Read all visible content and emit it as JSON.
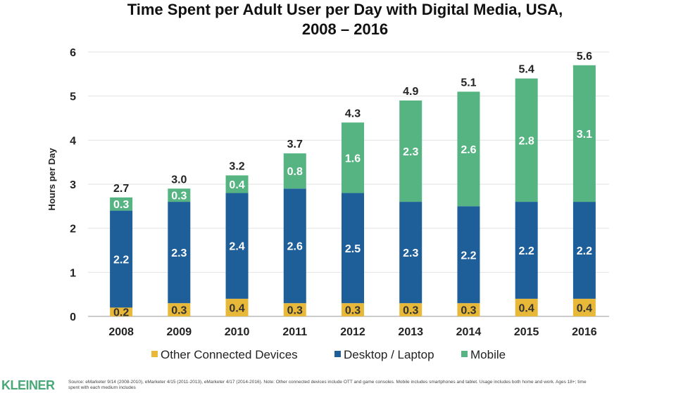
{
  "chart_data": {
    "type": "bar",
    "stacked": true,
    "title": "Time Spent per Adult User per Day with Digital Media, USA,",
    "title_line2": "2008 – 2016",
    "xlabel": "",
    "ylabel": "Hours per Day",
    "ylim": [
      0,
      6
    ],
    "yticks": [
      "0",
      "1",
      "2",
      "3",
      "4",
      "5",
      "6"
    ],
    "grid": true,
    "legend_position": "bottom",
    "categories": [
      "2008",
      "2009",
      "2010",
      "2011",
      "2012",
      "2013",
      "2014",
      "2015",
      "2016"
    ],
    "series": [
      {
        "name": "Other Connected Devices",
        "color": "#e8b838",
        "label_color": "#333333",
        "values": [
          0.2,
          0.3,
          0.4,
          0.3,
          0.3,
          0.3,
          0.3,
          0.4,
          0.4
        ]
      },
      {
        "name": "Desktop / Laptop",
        "color": "#1f5f99",
        "label_color": "#ffffff",
        "values": [
          2.2,
          2.3,
          2.4,
          2.6,
          2.5,
          2.3,
          2.2,
          2.2,
          2.2
        ]
      },
      {
        "name": "Mobile",
        "color": "#56b483",
        "label_color": "#ffffff",
        "values": [
          0.3,
          0.3,
          0.4,
          0.8,
          1.6,
          2.3,
          2.6,
          2.8,
          3.1
        ]
      }
    ],
    "totals": [
      "2.7",
      "3.0",
      "3.2",
      "3.7",
      "4.3",
      "4.9",
      "5.1",
      "5.4",
      "5.6"
    ]
  },
  "footer": {
    "logo": "KLEINER",
    "source": "Source: eMarketer 9/14 (2008-2010), eMarketer 4/15 (2011-2013), eMarketer 4/17 (2014-2016). Note: Other connected devices include OTT and game consoles. Mobile includes smartphones and tablet. Usage includes both home and work. Ages 18+; time spent with each medium includes"
  }
}
